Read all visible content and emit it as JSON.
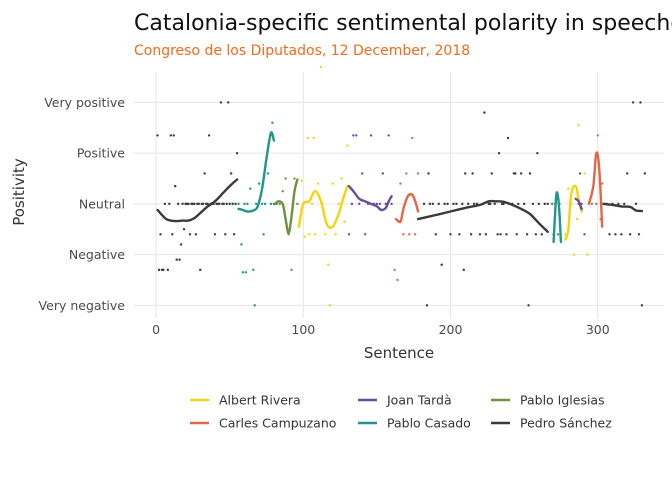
{
  "chart_data": {
    "type": "scatter",
    "title": "Catalonia-specific sentimental polarity in speeches",
    "subtitle": "Congreso de los Diputados, 12 December, 2018",
    "xlabel": "Sentence",
    "ylabel": "Positivity",
    "xlim": [
      -15,
      345
    ],
    "ylim": [
      -2.25,
      2.6
    ],
    "x_ticks": [
      0,
      100,
      200,
      300
    ],
    "y_ticks": [
      {
        "value": 2,
        "label": "Very positive"
      },
      {
        "value": 1,
        "label": "Positive"
      },
      {
        "value": 0,
        "label": "Neutral"
      },
      {
        "value": -1,
        "label": "Negative"
      },
      {
        "value": -2,
        "label": "Very negative"
      }
    ],
    "grid": true,
    "legend_position": "bottom",
    "series": [
      {
        "name": "Albert Rivera",
        "color": "#f5d40b",
        "points": [
          [
            99,
            0.45
          ],
          [
            101,
            -0.65
          ],
          [
            103,
            1.3
          ],
          [
            104,
            -0.6
          ],
          [
            106,
            0
          ],
          [
            107,
            1.3
          ],
          [
            108,
            -0.6
          ],
          [
            110,
            0.4
          ],
          [
            112,
            2.7
          ],
          [
            113,
            0
          ],
          [
            115,
            -0.6
          ],
          [
            117,
            -1.2
          ],
          [
            118,
            -2
          ],
          [
            120,
            0.4
          ],
          [
            122,
            -0.6
          ],
          [
            124,
            0
          ],
          [
            126,
            0.5
          ],
          [
            128,
            -0.35
          ],
          [
            130,
            1.15
          ],
          [
            278,
            -0.6
          ],
          [
            280,
            0.3
          ],
          [
            282,
            0
          ],
          [
            284,
            -1
          ],
          [
            286,
            -0.3
          ],
          [
            287,
            1.55
          ],
          [
            289,
            0
          ],
          [
            291,
            0.6
          ],
          [
            293,
            -1
          ]
        ],
        "trend": [
          [
            97,
            -0.45
          ],
          [
            100,
            0.0
          ],
          [
            104,
            0.05
          ],
          [
            108,
            0.25
          ],
          [
            112,
            0.05
          ],
          [
            116,
            -0.4
          ],
          [
            120,
            -0.45
          ],
          [
            124,
            -0.2
          ],
          [
            127,
            0.1
          ],
          [
            130,
            0.35
          ],
          [
            278,
            -0.7
          ],
          [
            280,
            -0.5
          ],
          [
            282,
            0.2
          ],
          [
            285,
            0.35
          ],
          [
            287,
            0.1
          ],
          [
            289,
            -0.15
          ]
        ]
      },
      {
        "name": "Carles Campuzano",
        "color": "#e0684a",
        "points": [
          [
            162,
            -1.3
          ],
          [
            164,
            -1.5
          ],
          [
            166,
            0.4
          ],
          [
            168,
            -0.6
          ],
          [
            170,
            0.6
          ],
          [
            172,
            -0.6
          ],
          [
            174,
            1.3
          ],
          [
            176,
            -0.6
          ],
          [
            178,
            0.6
          ],
          [
            296,
            0
          ],
          [
            298,
            0.6
          ],
          [
            299,
            0
          ],
          [
            300,
            1.35
          ],
          [
            302,
            -0.3
          ],
          [
            303,
            0.4
          ]
        ],
        "trend": [
          [
            163,
            -0.3
          ],
          [
            166,
            -0.35
          ],
          [
            168,
            -0.1
          ],
          [
            171,
            0.15
          ],
          [
            174,
            0.18
          ],
          [
            176,
            0.05
          ],
          [
            178,
            -0.15
          ],
          [
            294,
            0.0
          ],
          [
            297,
            0.35
          ],
          [
            299,
            1.0
          ],
          [
            301,
            0.7
          ],
          [
            303,
            -0.45
          ]
        ]
      },
      {
        "name": "Joan Tardà",
        "color": "#6a4c9c",
        "points": [
          [
            131,
            -0.6
          ],
          [
            133,
            0
          ],
          [
            134,
            1.35
          ],
          [
            136,
            1.35
          ],
          [
            138,
            0
          ],
          [
            140,
            0.6
          ],
          [
            142,
            -0.6
          ],
          [
            144,
            0
          ],
          [
            146,
            1.35
          ],
          [
            148,
            0
          ],
          [
            150,
            0
          ],
          [
            152,
            0
          ],
          [
            154,
            0.6
          ],
          [
            156,
            0
          ],
          [
            158,
            1.35
          ],
          [
            160,
            0
          ],
          [
            287,
            0
          ],
          [
            288,
            0.6
          ],
          [
            289,
            0
          ],
          [
            291,
            -0.6
          ]
        ],
        "trend": [
          [
            131,
            0.35
          ],
          [
            134,
            0.25
          ],
          [
            138,
            0.1
          ],
          [
            142,
            0.05
          ],
          [
            146,
            0.0
          ],
          [
            150,
            -0.05
          ],
          [
            153,
            -0.12
          ],
          [
            156,
            -0.08
          ],
          [
            158,
            0.05
          ],
          [
            160,
            0.15
          ],
          [
            285,
            0.1
          ],
          [
            287,
            0.05
          ],
          [
            289,
            -0.1
          ]
        ]
      },
      {
        "name": "Pablo Casado",
        "color": "#22968b",
        "points": [
          [
            56,
            0
          ],
          [
            58,
            -0.8
          ],
          [
            59,
            -1.35
          ],
          [
            60,
            0
          ],
          [
            61,
            -1.35
          ],
          [
            62,
            0
          ],
          [
            64,
            0.3
          ],
          [
            66,
            -1.3
          ],
          [
            67,
            -2
          ],
          [
            68,
            0
          ],
          [
            70,
            0.4
          ],
          [
            72,
            0
          ],
          [
            73,
            -0.6
          ],
          [
            74,
            0
          ],
          [
            76,
            0.6
          ],
          [
            78,
            0
          ],
          [
            79,
            1.6
          ],
          [
            80,
            0
          ],
          [
            269,
            0
          ],
          [
            270,
            -0.6
          ],
          [
            271,
            0
          ],
          [
            272,
            0.2
          ],
          [
            273,
            -0.6
          ],
          [
            274,
            0
          ]
        ],
        "trend": [
          [
            56,
            -0.1
          ],
          [
            59,
            -0.12
          ],
          [
            62,
            -0.15
          ],
          [
            66,
            -0.13
          ],
          [
            69,
            -0.05
          ],
          [
            72,
            0.3
          ],
          [
            75,
            0.9
          ],
          [
            78,
            1.4
          ],
          [
            80,
            1.25
          ],
          [
            270,
            -0.75
          ],
          [
            271,
            -0.2
          ],
          [
            272,
            0.2
          ],
          [
            273,
            0.15
          ],
          [
            274,
            -0.2
          ],
          [
            275,
            -0.75
          ]
        ]
      },
      {
        "name": "Pablo Iglesias",
        "color": "#6e9240",
        "points": [
          [
            82,
            0
          ],
          [
            84,
            0
          ],
          [
            86,
            0.25
          ],
          [
            88,
            0.5
          ],
          [
            90,
            -0.6
          ],
          [
            92,
            -1.3
          ],
          [
            94,
            0.5
          ],
          [
            96,
            0
          ]
        ],
        "trend": [
          [
            81,
            0.0
          ],
          [
            83,
            0.05
          ],
          [
            86,
            0.0
          ],
          [
            88,
            -0.3
          ],
          [
            90,
            -0.58
          ],
          [
            92,
            -0.25
          ],
          [
            94,
            0.25
          ],
          [
            96,
            0.48
          ]
        ]
      },
      {
        "name": "Pedro Sánchez",
        "color": "#3a3a3a",
        "points": [
          [
            1,
            1.35
          ],
          [
            2,
            -1.3
          ],
          [
            3,
            -0.6
          ],
          [
            4,
            -1.3
          ],
          [
            5,
            -1.3
          ],
          [
            6,
            0
          ],
          [
            8,
            -1.3
          ],
          [
            9,
            0
          ],
          [
            10,
            1.35
          ],
          [
            11,
            -0.6
          ],
          [
            12,
            1.35
          ],
          [
            13,
            0.35
          ],
          [
            14,
            -1.1
          ],
          [
            15,
            0
          ],
          [
            16,
            -1.1
          ],
          [
            17,
            -0.8
          ],
          [
            18,
            0
          ],
          [
            19,
            -0.5
          ],
          [
            20,
            0
          ],
          [
            21,
            0
          ],
          [
            22,
            0
          ],
          [
            23,
            -0.6
          ],
          [
            24,
            0
          ],
          [
            25,
            0
          ],
          [
            26,
            0
          ],
          [
            27,
            -0.6
          ],
          [
            28,
            0
          ],
          [
            29,
            0
          ],
          [
            30,
            -1.3
          ],
          [
            31,
            0
          ],
          [
            32,
            0
          ],
          [
            33,
            0.6
          ],
          [
            34,
            0
          ],
          [
            35,
            0
          ],
          [
            36,
            1.35
          ],
          [
            37,
            0
          ],
          [
            38,
            0
          ],
          [
            39,
            0
          ],
          [
            40,
            -0.6
          ],
          [
            41,
            0
          ],
          [
            42,
            0
          ],
          [
            43,
            0
          ],
          [
            44,
            2
          ],
          [
            45,
            0
          ],
          [
            46,
            0
          ],
          [
            47,
            -0.6
          ],
          [
            48,
            0
          ],
          [
            49,
            2
          ],
          [
            50,
            0
          ],
          [
            51,
            0.6
          ],
          [
            52,
            0
          ],
          [
            53,
            -0.6
          ],
          [
            54,
            0
          ],
          [
            55,
            1
          ],
          [
            182,
            0
          ],
          [
            184,
            -2
          ],
          [
            185,
            0.6
          ],
          [
            186,
            0
          ],
          [
            188,
            0
          ],
          [
            190,
            -0.6
          ],
          [
            192,
            0
          ],
          [
            194,
            -1.2
          ],
          [
            196,
            0
          ],
          [
            198,
            0
          ],
          [
            200,
            -0.6
          ],
          [
            202,
            0
          ],
          [
            204,
            0
          ],
          [
            206,
            -0.6
          ],
          [
            208,
            0
          ],
          [
            209,
            -1.3
          ],
          [
            210,
            0.6
          ],
          [
            212,
            0
          ],
          [
            214,
            -0.6
          ],
          [
            215,
            0.6
          ],
          [
            216,
            0
          ],
          [
            218,
            0
          ],
          [
            220,
            -0.6
          ],
          [
            222,
            0
          ],
          [
            223,
            1.8
          ],
          [
            224,
            -0.6
          ],
          [
            226,
            0
          ],
          [
            227,
            0
          ],
          [
            228,
            0.6
          ],
          [
            230,
            0
          ],
          [
            232,
            -0.6
          ],
          [
            233,
            1
          ],
          [
            234,
            -0.6
          ],
          [
            235,
            0
          ],
          [
            236,
            0
          ],
          [
            238,
            -0.6
          ],
          [
            239,
            1.3
          ],
          [
            240,
            0
          ],
          [
            242,
            0
          ],
          [
            243,
            0.6
          ],
          [
            244,
            0.6
          ],
          [
            245,
            -0.6
          ],
          [
            246,
            0
          ],
          [
            248,
            0.6
          ],
          [
            250,
            0
          ],
          [
            252,
            -0.6
          ],
          [
            253,
            -2
          ],
          [
            254,
            0.6
          ],
          [
            256,
            0
          ],
          [
            258,
            -0.6
          ],
          [
            259,
            1
          ],
          [
            260,
            0
          ],
          [
            262,
            -0.6
          ],
          [
            264,
            0
          ],
          [
            266,
            0
          ],
          [
            304,
            0
          ],
          [
            306,
            0
          ],
          [
            308,
            -0.6
          ],
          [
            310,
            0
          ],
          [
            312,
            -0.6
          ],
          [
            314,
            0
          ],
          [
            316,
            -0.6
          ],
          [
            318,
            0
          ],
          [
            320,
            0.6
          ],
          [
            322,
            -0.6
          ],
          [
            324,
            2
          ],
          [
            326,
            0
          ],
          [
            328,
            -0.6
          ],
          [
            329,
            2
          ],
          [
            330,
            -2
          ],
          [
            332,
            0.6
          ]
        ],
        "trend": [
          [
            1,
            -0.12
          ],
          [
            4,
            -0.22
          ],
          [
            7,
            -0.3
          ],
          [
            10,
            -0.33
          ],
          [
            14,
            -0.34
          ],
          [
            18,
            -0.33
          ],
          [
            22,
            -0.33
          ],
          [
            26,
            -0.28
          ],
          [
            30,
            -0.18
          ],
          [
            35,
            -0.05
          ],
          [
            40,
            0.05
          ],
          [
            45,
            0.2
          ],
          [
            50,
            0.35
          ],
          [
            55,
            0.48
          ],
          [
            178,
            -0.3
          ],
          [
            190,
            -0.22
          ],
          [
            200,
            -0.15
          ],
          [
            210,
            -0.08
          ],
          [
            220,
            -0.02
          ],
          [
            226,
            0.05
          ],
          [
            231,
            0.05
          ],
          [
            236,
            0.04
          ],
          [
            242,
            -0.02
          ],
          [
            248,
            -0.1
          ],
          [
            254,
            -0.2
          ],
          [
            260,
            -0.38
          ],
          [
            266,
            -0.55
          ],
          [
            304,
            0.0
          ],
          [
            310,
            -0.02
          ],
          [
            316,
            -0.05
          ],
          [
            322,
            -0.06
          ],
          [
            326,
            -0.13
          ],
          [
            330,
            -0.14
          ]
        ]
      }
    ]
  }
}
